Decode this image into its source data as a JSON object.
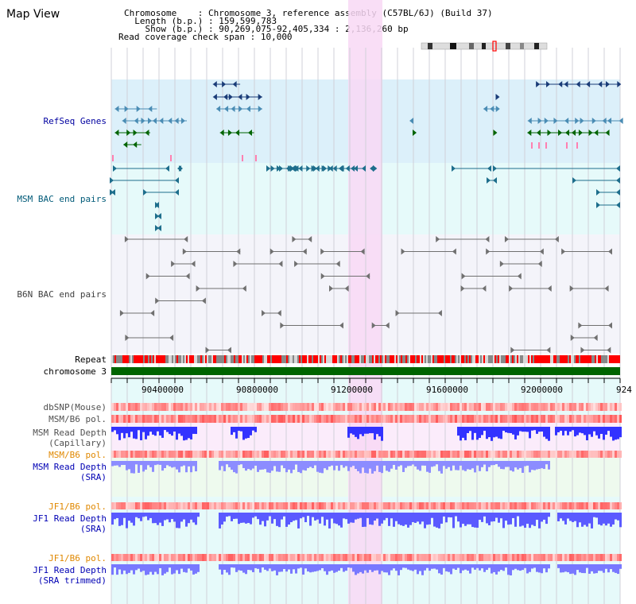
{
  "page": {
    "title": "Map View"
  },
  "info": {
    "chromosome_key": "Chromosome",
    "chromosome_val": ": Chromosome 3, reference assembly (C57BL/6J) (Build 37)",
    "length_key": "Length (b.p.)",
    "length_val": ": 159,599,783",
    "show_key": "Show (b.p.)",
    "show_val": ": 90,269,075-92,405,334 : 2,136,260 bp",
    "coverage_key": "Read coverage check span",
    "coverage_val": ": 10,000"
  },
  "tracks": {
    "refseq": "RefSeq Genes",
    "msm_bac": "MSM BAC end pairs",
    "b6n_bac": "B6N BAC end pairs",
    "repeat": "Repeat",
    "chromosome": "chromosome 3",
    "dbsnp": "dbSNP(Mouse)",
    "msm_b6_pol": "MSM/B6 pol.",
    "msm_depth_cap_1": "MSM Read Depth",
    "msm_depth_cap_2": "(Capillary)",
    "msm_b6_pol2": "MSM/B6 pol.",
    "msm_depth_sra_1": "MSM Read Depth",
    "msm_depth_sra_2": "(SRA)",
    "jf1_pol": "JF1/B6 pol.",
    "jf1_depth_sra_1": "JF1 Read Depth",
    "jf1_depth_sra_2": "(SRA)",
    "jf1_pol2": "JF1/B6 pol.",
    "jf1_depth_trim_1": "JF1 Read Depth",
    "jf1_depth_trim_2": "(SRA trimmed)"
  },
  "axis": {
    "ticks": [
      "90400000",
      "90800000",
      "91200000",
      "91600000",
      "92000000",
      "924"
    ]
  },
  "colors": {
    "refseq_bg": "#dcf0fa",
    "bac_bg": "#e6fafa",
    "highlight": "#f8d8f4",
    "chromosome_bar": "#006400",
    "repeat_red": "#ff0000",
    "depth_blue": "#3232ff",
    "depth_violet": "#8c8cff"
  }
}
